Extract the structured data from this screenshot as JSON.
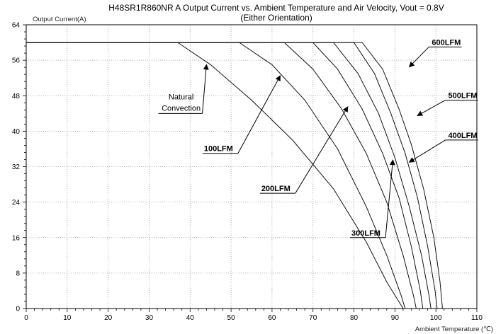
{
  "chart_data": {
    "type": "line",
    "title": "H48SR1R860NR A Output Current vs. Ambient Temperature and Air Velocity, Vout = 0.8V",
    "subtitle": "(Either Orientation)",
    "xlabel": "Ambient Temperature (℃)",
    "ylabel": "Output Current(A)",
    "xlim": [
      0,
      110
    ],
    "ylim": [
      0,
      64
    ],
    "x_ticks": [
      0,
      10,
      20,
      30,
      40,
      50,
      60,
      70,
      80,
      90,
      100,
      110
    ],
    "y_ticks": [
      0,
      8,
      16,
      24,
      32,
      40,
      48,
      56,
      64
    ],
    "grid": true,
    "series": [
      {
        "name": "Natural Convection",
        "points": [
          [
            0,
            60
          ],
          [
            37,
            60
          ],
          [
            45,
            55
          ],
          [
            55,
            47
          ],
          [
            65,
            38
          ],
          [
            75,
            27
          ],
          [
            83,
            15
          ],
          [
            88,
            6
          ],
          [
            92,
            0
          ]
        ]
      },
      {
        "name": "100LFM",
        "points": [
          [
            0,
            60
          ],
          [
            52,
            60
          ],
          [
            60,
            55
          ],
          [
            68,
            47
          ],
          [
            76,
            36
          ],
          [
            83,
            23
          ],
          [
            88,
            12
          ],
          [
            91.5,
            3
          ],
          [
            92.5,
            0
          ]
        ]
      },
      {
        "name": "200LFM",
        "points": [
          [
            0,
            60
          ],
          [
            63,
            60
          ],
          [
            70,
            54
          ],
          [
            77,
            45
          ],
          [
            83,
            35
          ],
          [
            88,
            24
          ],
          [
            92,
            12
          ],
          [
            94.5,
            3
          ],
          [
            95.2,
            0
          ]
        ]
      },
      {
        "name": "300LFM",
        "points": [
          [
            0,
            60
          ],
          [
            70,
            60
          ],
          [
            76,
            54
          ],
          [
            82,
            45
          ],
          [
            87,
            35
          ],
          [
            91,
            25
          ],
          [
            94,
            14
          ],
          [
            96.2,
            4
          ],
          [
            96.8,
            0
          ]
        ]
      },
      {
        "name": "400LFM",
        "points": [
          [
            0,
            60
          ],
          [
            75,
            60
          ],
          [
            81,
            53
          ],
          [
            86,
            44
          ],
          [
            90,
            34
          ],
          [
            93.5,
            23
          ],
          [
            96.5,
            12
          ],
          [
            98.3,
            3
          ],
          [
            98.8,
            0
          ]
        ]
      },
      {
        "name": "500LFM",
        "points": [
          [
            0,
            60
          ],
          [
            80,
            60
          ],
          [
            85,
            53
          ],
          [
            89,
            44
          ],
          [
            92.5,
            35
          ],
          [
            95.5,
            25
          ],
          [
            98,
            14
          ],
          [
            99.8,
            4
          ],
          [
            100.3,
            0
          ]
        ]
      },
      {
        "name": "600LFM",
        "points": [
          [
            0,
            60
          ],
          [
            82,
            60
          ],
          [
            87,
            54
          ],
          [
            91,
            45
          ],
          [
            94,
            37
          ],
          [
            97,
            27
          ],
          [
            99.5,
            16
          ],
          [
            101,
            6
          ],
          [
            101.6,
            0
          ]
        ]
      }
    ],
    "annotations": [
      {
        "text": "Natural Convection",
        "line1": "Natural",
        "line2": "Convection",
        "label_at": [
          43,
          44
        ],
        "arrow_to": [
          44,
          55
        ],
        "target_series": "Natural Convection",
        "style": "normal"
      },
      {
        "text": "100LFM",
        "label_at": [
          51,
          35
        ],
        "arrow_to": [
          62,
          52.5
        ],
        "target_series": "100LFM",
        "style": "bold"
      },
      {
        "text": "200LFM",
        "label_at": [
          65,
          26
        ],
        "arrow_to": [
          78.5,
          45.5
        ],
        "target_series": "200LFM",
        "style": "bold"
      },
      {
        "text": "300LFM",
        "label_at": [
          87,
          16
        ],
        "arrow_to": [
          89.5,
          33.5
        ],
        "target_series": "300LFM",
        "style": "bold"
      },
      {
        "text": "400LFM",
        "label_at": [
          103,
          38
        ],
        "arrow_to": [
          93.5,
          33
        ],
        "target_series": "400LFM",
        "style": "bold"
      },
      {
        "text": "500LFM",
        "label_at": [
          103,
          47
        ],
        "arrow_to": [
          95.5,
          43.5
        ],
        "target_series": "500LFM",
        "style": "bold"
      },
      {
        "text": "600LFM",
        "label_at": [
          99,
          59
        ],
        "arrow_to": [
          93.5,
          54.5
        ],
        "target_series": "600LFM",
        "style": "bold"
      }
    ]
  }
}
